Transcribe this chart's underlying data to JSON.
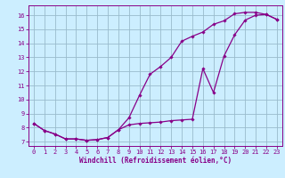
{
  "xlabel": "Windchill (Refroidissement éolien,°C)",
  "bg_color": "#cceeff",
  "grid_color": "#99bbcc",
  "line_color": "#880088",
  "xlim": [
    -0.5,
    23.5
  ],
  "ylim": [
    6.7,
    16.7
  ],
  "xticks": [
    0,
    1,
    2,
    3,
    4,
    5,
    6,
    7,
    8,
    9,
    10,
    11,
    12,
    13,
    14,
    15,
    16,
    17,
    18,
    19,
    20,
    21,
    22,
    23
  ],
  "yticks": [
    7,
    8,
    9,
    10,
    11,
    12,
    13,
    14,
    15,
    16
  ],
  "curve1_x": [
    0,
    1,
    2,
    3,
    4,
    5,
    6,
    7,
    8,
    9,
    10,
    11,
    12,
    13,
    14,
    15,
    16,
    17,
    18,
    19,
    20,
    21,
    22,
    23
  ],
  "curve1_y": [
    8.3,
    7.8,
    7.55,
    7.2,
    7.2,
    7.1,
    7.15,
    7.3,
    7.85,
    8.7,
    10.3,
    11.8,
    12.35,
    13.0,
    14.15,
    14.5,
    14.8,
    15.35,
    15.6,
    16.1,
    16.2,
    16.2,
    16.05,
    15.7
  ],
  "curve2_x": [
    0,
    1,
    2,
    3,
    4,
    5,
    6,
    7,
    8,
    9,
    10,
    11,
    12,
    13,
    14,
    15,
    16,
    17,
    18,
    19,
    20,
    21,
    22,
    23
  ],
  "curve2_y": [
    8.3,
    7.8,
    7.55,
    7.2,
    7.2,
    7.1,
    7.15,
    7.3,
    7.85,
    8.2,
    8.3,
    8.35,
    8.4,
    8.5,
    8.55,
    8.6,
    12.2,
    10.5,
    13.1,
    14.6,
    15.65,
    16.0,
    16.05,
    15.7
  ],
  "xlabel_fontsize": 5.5,
  "tick_fontsize": 5.0
}
